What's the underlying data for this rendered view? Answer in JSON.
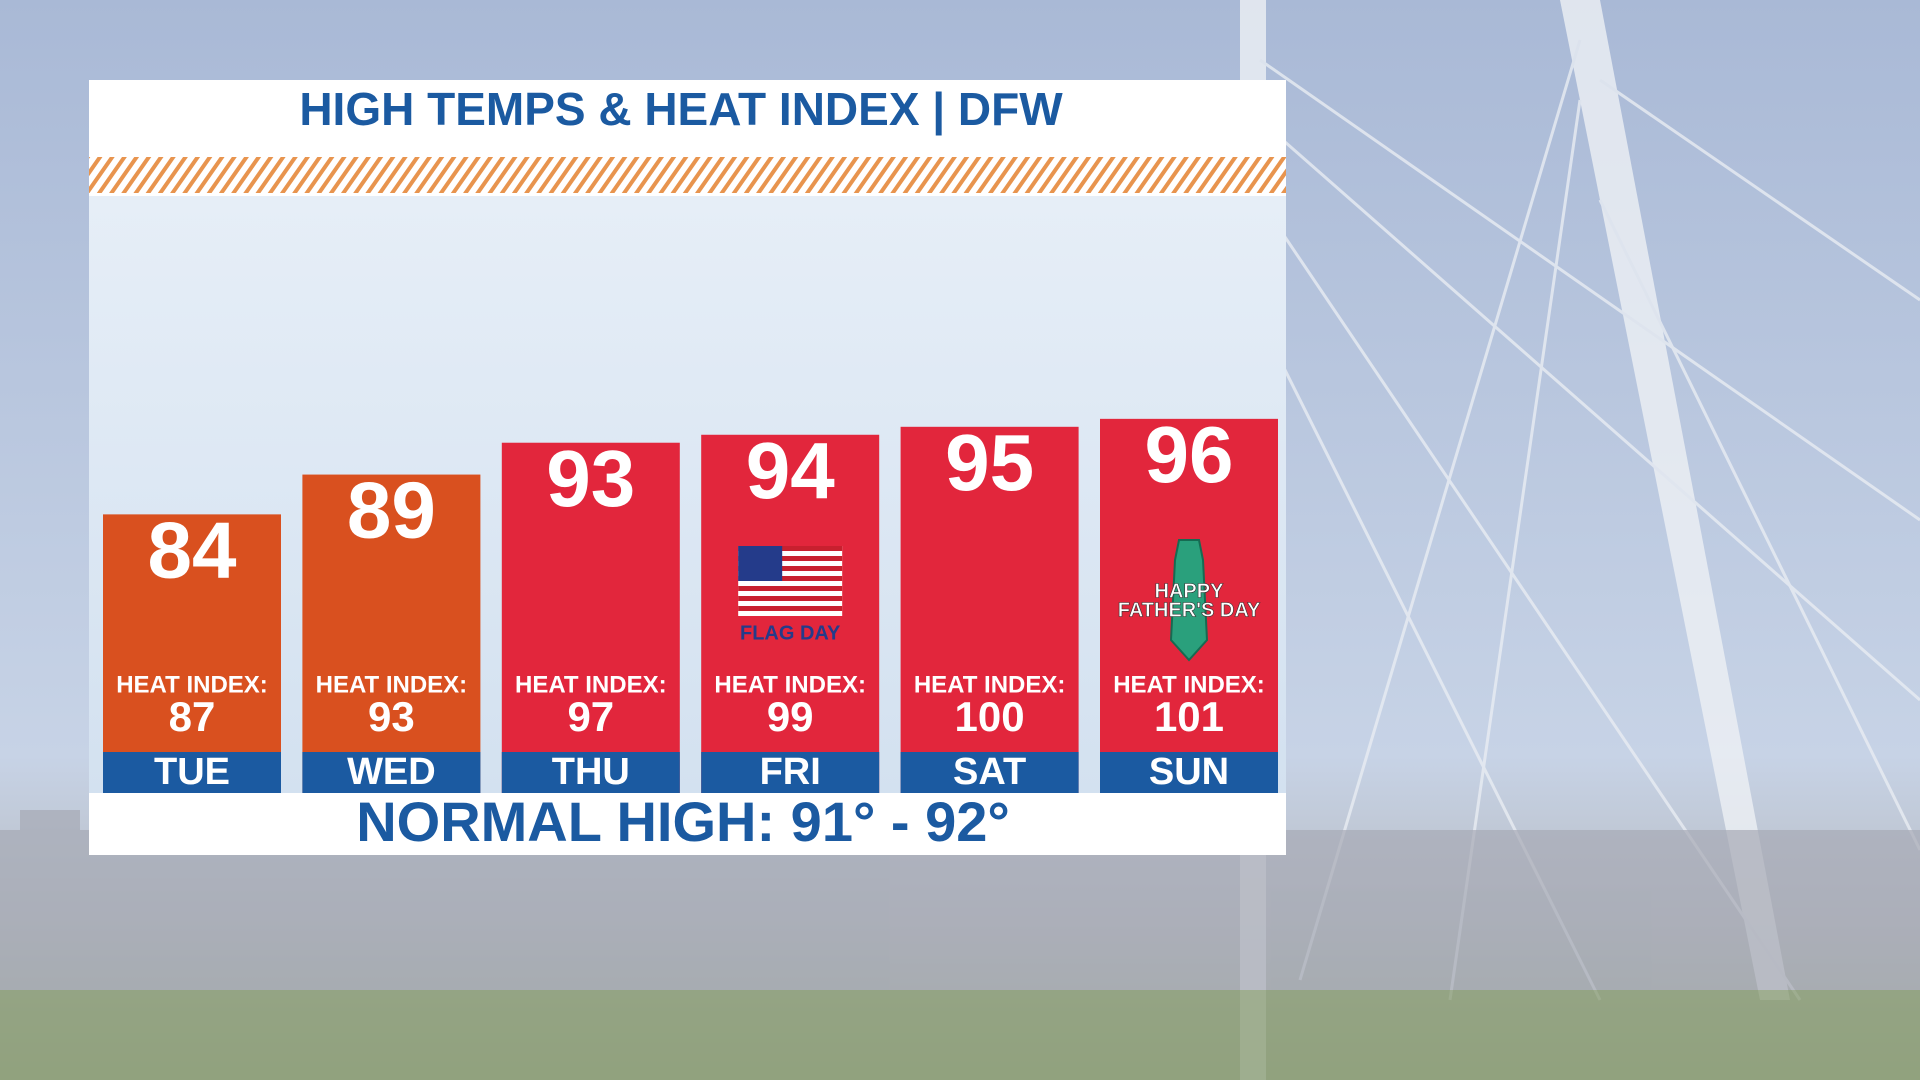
{
  "chart_data": {
    "type": "bar",
    "title": "HIGH TEMPS & HEAT INDEX | DFW",
    "categories": [
      "TUE",
      "WED",
      "THU",
      "FRI",
      "SAT",
      "SUN"
    ],
    "values": [
      84,
      89,
      93,
      94,
      95,
      96
    ],
    "colors": [
      "#d9501f",
      "#d9501f",
      "#e2263c",
      "#e2263c",
      "#e2263c",
      "#e2263c"
    ],
    "heat_index_label": "HEAT INDEX:",
    "heat_index": [
      87,
      93,
      97,
      99,
      100,
      101
    ],
    "ylim": [
      49,
      100
    ],
    "annotations": [
      {
        "category": "FRI",
        "lines": [
          "FLAG DAY"
        ]
      },
      {
        "category": "SUN",
        "lines": [
          "HAPPY",
          "FATHER'S DAY"
        ]
      }
    ],
    "footer": "NORMAL HIGH:  91° - 92°"
  }
}
